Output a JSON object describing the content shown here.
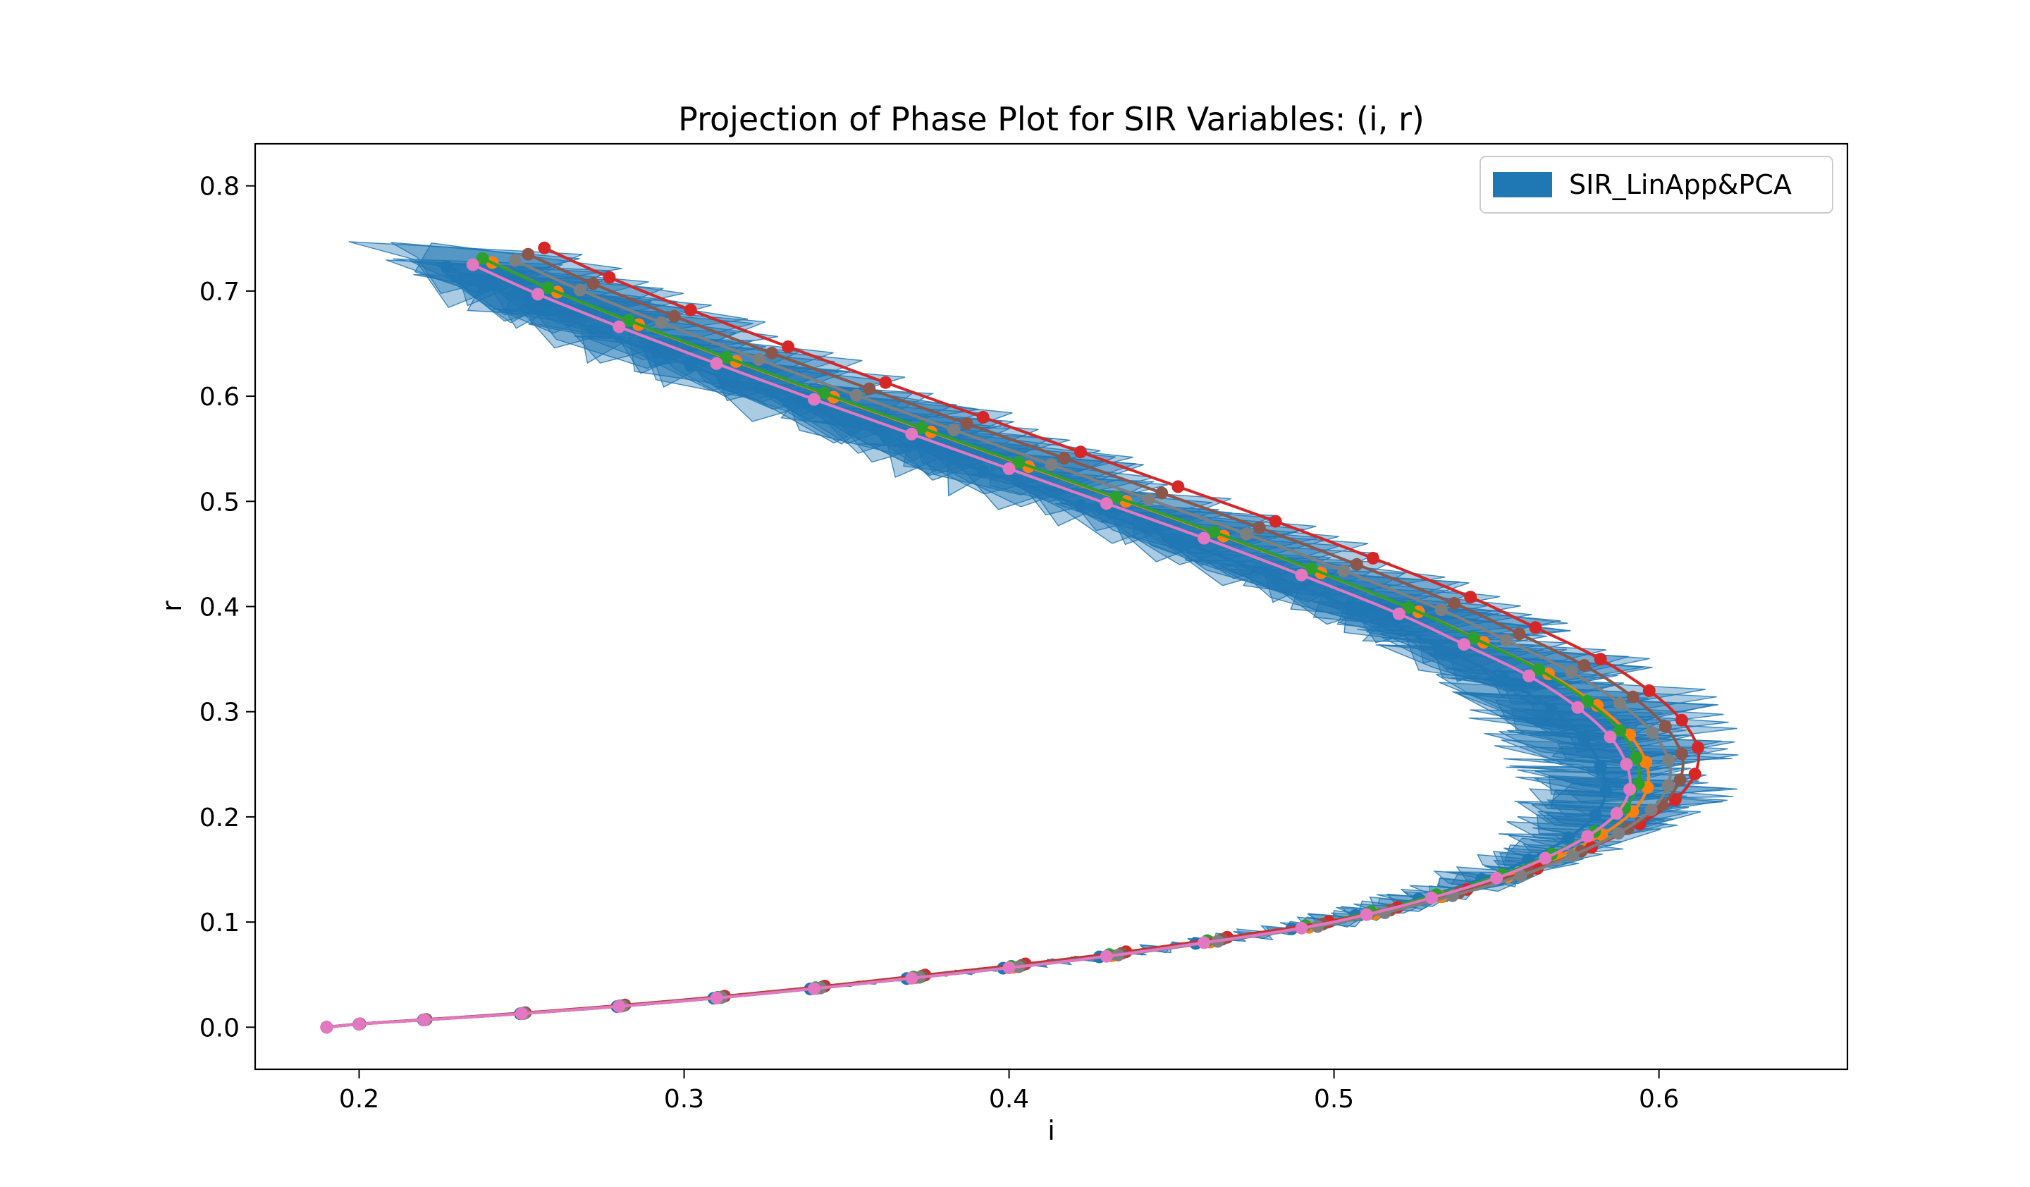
{
  "chart_data": {
    "type": "line",
    "title": "Projection of Phase Plot for SIR Variables: (i, r)",
    "xlabel": "i",
    "ylabel": "r",
    "xlim": [
      0.168,
      0.658
    ],
    "ylim": [
      -0.04,
      0.84
    ],
    "xticks": [
      0.2,
      0.3,
      0.4,
      0.5,
      0.6
    ],
    "xtick_labels": [
      "0.2",
      "0.3",
      "0.4",
      "0.5",
      "0.6"
    ],
    "yticks": [
      0.0,
      0.1,
      0.2,
      0.3,
      0.4,
      0.5,
      0.6,
      0.7,
      0.8
    ],
    "ytick_labels": [
      "0.0",
      "0.1",
      "0.2",
      "0.3",
      "0.4",
      "0.5",
      "0.6",
      "0.7",
      "0.8"
    ],
    "grid": false,
    "legend": {
      "placement": "top-right",
      "entries": [
        {
          "label": "SIR_LinApp&PCA",
          "color": "#1f77b4"
        }
      ]
    },
    "band": {
      "name": "SIR_LinApp&PCA",
      "color": "#1f77b4",
      "fill_opacity": 0.38,
      "center": [
        [
          0.19,
          0.0
        ],
        [
          0.2,
          0.003
        ],
        [
          0.22,
          0.007
        ],
        [
          0.25,
          0.013
        ],
        [
          0.28,
          0.02
        ],
        [
          0.31,
          0.028
        ],
        [
          0.34,
          0.037
        ],
        [
          0.37,
          0.047
        ],
        [
          0.4,
          0.057
        ],
        [
          0.43,
          0.068
        ],
        [
          0.46,
          0.081
        ],
        [
          0.49,
          0.095
        ],
        [
          0.51,
          0.108
        ],
        [
          0.53,
          0.124
        ],
        [
          0.55,
          0.143
        ],
        [
          0.565,
          0.162
        ],
        [
          0.578,
          0.183
        ],
        [
          0.587,
          0.205
        ],
        [
          0.591,
          0.228
        ],
        [
          0.59,
          0.252
        ],
        [
          0.585,
          0.278
        ],
        [
          0.575,
          0.306
        ],
        [
          0.56,
          0.336
        ],
        [
          0.54,
          0.366
        ],
        [
          0.52,
          0.395
        ],
        [
          0.49,
          0.432
        ],
        [
          0.46,
          0.467
        ],
        [
          0.43,
          0.5
        ],
        [
          0.4,
          0.533
        ],
        [
          0.37,
          0.566
        ],
        [
          0.34,
          0.599
        ],
        [
          0.31,
          0.633
        ],
        [
          0.28,
          0.668
        ],
        [
          0.255,
          0.699
        ],
        [
          0.235,
          0.727
        ]
      ],
      "half_width_i": [
        0.0,
        0.0,
        0.0,
        0.0,
        0.0,
        0.001,
        0.001,
        0.002,
        0.003,
        0.004,
        0.006,
        0.008,
        0.01,
        0.013,
        0.016,
        0.02,
        0.026,
        0.032,
        0.038,
        0.042,
        0.044,
        0.044,
        0.043,
        0.042,
        0.041,
        0.04,
        0.04,
        0.039,
        0.039,
        0.039,
        0.039,
        0.04,
        0.04,
        0.041,
        0.042
      ],
      "half_width_r": [
        0.0,
        0.0,
        0.0,
        0.0,
        0.001,
        0.001,
        0.002,
        0.003,
        0.004,
        0.005,
        0.006,
        0.008,
        0.01,
        0.012,
        0.014,
        0.016,
        0.018,
        0.02,
        0.022,
        0.024,
        0.026,
        0.028,
        0.03,
        0.032,
        0.034,
        0.036,
        0.038,
        0.039,
        0.04,
        0.04,
        0.041,
        0.041,
        0.042,
        0.042,
        0.043
      ]
    },
    "series": [
      {
        "color": "#1f77b4",
        "di": -0.008,
        "dr": -0.004
      },
      {
        "color": "#ff7f0e",
        "di": 0.006,
        "dr": 0.0
      },
      {
        "color": "#2ca02c",
        "di": 0.003,
        "dr": 0.004
      },
      {
        "color": "#d62728",
        "di": 0.022,
        "dr": 0.014
      },
      {
        "color": "#8c564b",
        "di": 0.017,
        "dr": 0.008
      },
      {
        "color": "#7f7f7f",
        "di": 0.013,
        "dr": 0.002
      },
      {
        "color": "#e377c2",
        "di": 0.0,
        "dr": -0.002
      }
    ]
  }
}
